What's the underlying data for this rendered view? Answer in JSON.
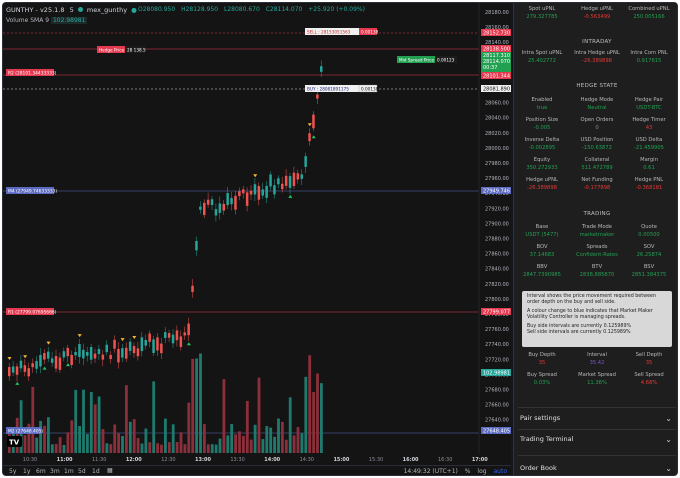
{
  "header": {
    "symbol": "GUNTHY - v25.1.8",
    "interval": "5",
    "exchange": "mex_gunthy",
    "open": "O28080.950",
    "high": "H28128.950",
    "low": "L28080.670",
    "close": "C28114.070",
    "change": "+25.920 (+0.09%)",
    "volume_label": "Volume SMA 9",
    "volume_value": "102.98981"
  },
  "price_axis": {
    "ticks": [
      "28180.00",
      "28160.00",
      "28140.00",
      "28120.00",
      "28100.00",
      "28080.00",
      "28060.00",
      "28040.00",
      "28020.00",
      "28000.00",
      "27980.00",
      "27960.00",
      "27940.00",
      "27920.00",
      "27900.00",
      "27880.00",
      "27860.00",
      "27840.00",
      "27820.00",
      "27800.00",
      "27780.00",
      "27760.00",
      "27740.00",
      "27720.00",
      "27700.00",
      "27680.00",
      "27660.00",
      "27640.00"
    ],
    "badges": {
      "sell": "28152.730",
      "p1": "28138.500",
      "current": "28117.310",
      "cur_sub1": "28114.070",
      "cur_sub2": "00:37",
      "r2": "28101.344",
      "buy": "28081.890",
      "m4": "27949.746",
      "r1": "27799.077",
      "vol": "102.98981",
      "m2": "27648.405"
    }
  },
  "time_axis": {
    "ticks": [
      "10:30",
      "11:00",
      "11:30",
      "12:00",
      "12:30",
      "13:00",
      "13:30",
      "14:00",
      "14:30",
      "15:00",
      "15:30",
      "16:00",
      "16:30",
      "17:00"
    ]
  },
  "chart_labels": {
    "sell": "SELL : 28153051563",
    "sell_qty": "0.00138",
    "hedge": "Hedge Price",
    "hedge_val": "28 138.5",
    "midspread": "Mid Spread Price",
    "midspread_val": "0.00123",
    "buy": "BUY : 28081891175",
    "buy_qty": "0.00138",
    "r2": "R2 (28101.34433333)",
    "m4": "M4 (27949.74633333)",
    "r1": "R1 (27799.07695666)",
    "m2": "M2 (27648.405)"
  },
  "bottom_bar": {
    "ranges": [
      "5y",
      "1y",
      "6m",
      "3m",
      "1m",
      "5d",
      "1d"
    ],
    "clock": "14:49:32 (UTC+1)",
    "pct": "%",
    "log": "log",
    "auto": "auto"
  },
  "panel": {
    "top": [
      {
        "label": "Spot uPNL",
        "value": "279.327785",
        "color": "g"
      },
      {
        "label": "Hedge uPNL",
        "value": "-0.563499",
        "color": "r"
      },
      {
        "label": "Combined uPNL",
        "value": "250.005166",
        "color": "g"
      }
    ],
    "intraday_title": "INTRADAY",
    "intraday": [
      {
        "label": "Intra Spot uPNL",
        "value": "25.402772",
        "color": "g"
      },
      {
        "label": "Intra Hedge uPNL",
        "value": "-26.389898",
        "color": "r"
      },
      {
        "label": "Intra Com PNL",
        "value": "0.917815",
        "color": "g"
      }
    ],
    "hedge_title": "HEDGE STATE",
    "hedge_rows": [
      [
        {
          "label": "Enabled",
          "value": "true",
          "color": "g"
        },
        {
          "label": "Hedge Mode",
          "value": "Neutral",
          "color": "g"
        },
        {
          "label": "Hedge Pair",
          "value": "USDT-BTC",
          "color": "g"
        }
      ],
      [
        {
          "label": "Position Size",
          "value": "-0.005",
          "color": "g"
        },
        {
          "label": "Open Orders",
          "value": "0",
          "color": "gr"
        },
        {
          "label": "Hedge Timer",
          "value": "43",
          "color": "r"
        }
      ],
      [
        {
          "label": "Inverse Delta",
          "value": "-0.002895",
          "color": "g"
        },
        {
          "label": "USD Position",
          "value": "-150.63872",
          "color": "g"
        },
        {
          "label": "USD Delta",
          "value": "-21.459905",
          "color": "g"
        }
      ],
      [
        {
          "label": "Equity",
          "value": "350.272933",
          "color": "g"
        },
        {
          "label": "Collateral",
          "value": "511.472789",
          "color": "g"
        },
        {
          "label": "Margin",
          "value": "0.61",
          "color": "g"
        }
      ],
      [
        {
          "label": "Hedge uPNL",
          "value": "-26.389898",
          "color": "r"
        },
        {
          "label": "Net Funding",
          "value": "-0.177898",
          "color": "r"
        },
        {
          "label": "Hedge PNL",
          "value": "-0.368181",
          "color": "r"
        }
      ]
    ],
    "trading_title": "TRADING",
    "trading_rows": [
      [
        {
          "label": "Base",
          "value": "USDT (5477)",
          "color": "g"
        },
        {
          "label": "Trade Mode",
          "value": "marketmaker",
          "color": "g"
        },
        {
          "label": "Quote",
          "value": "0.00500",
          "color": "g"
        }
      ],
      [
        {
          "label": "BOV",
          "value": "37.14683",
          "color": "g"
        },
        {
          "label": "Spreads",
          "value": "Confident-Rates",
          "color": "g"
        },
        {
          "label": "SOV",
          "value": "26.25874",
          "color": "g"
        }
      ],
      [
        {
          "label": "BBV",
          "value": "2847.7390985",
          "color": "g"
        },
        {
          "label": "BTV",
          "value": "2838.885870",
          "color": "g"
        },
        {
          "label": "BSV",
          "value": "2851.384375",
          "color": "g"
        }
      ]
    ],
    "tooltip": {
      "p1": "Interval shows the price movement required between order depth on the buy and sell side.",
      "p2": "A colour change to blue indicates that Market Maker Volatility Controller is managing spreads.",
      "p3": "Buy side intervals are currently 0.125989%",
      "p4": "Sell side intervals are currently 0.125989%"
    },
    "depth_rows": [
      [
        {
          "label": "Buy Depth",
          "value": "35",
          "color": "r"
        },
        {
          "label": "Interval",
          "value": "35.42",
          "color": "b"
        },
        {
          "label": "Sell Depth",
          "value": "35",
          "color": "r"
        }
      ],
      [
        {
          "label": "Buy Spread",
          "value": "0.03%",
          "color": "g"
        },
        {
          "label": "Market Spread",
          "value": "11.38%",
          "color": "g"
        },
        {
          "label": "Sell Spread",
          "value": "4.68%",
          "color": "r"
        }
      ]
    ],
    "accordion": [
      "Pair settings",
      "Trading Terminal",
      "Order Book"
    ]
  },
  "colors": {
    "up": "#26a69a",
    "down": "#ef5350",
    "accent_red": "#e53950",
    "accent_green": "#22a052"
  }
}
